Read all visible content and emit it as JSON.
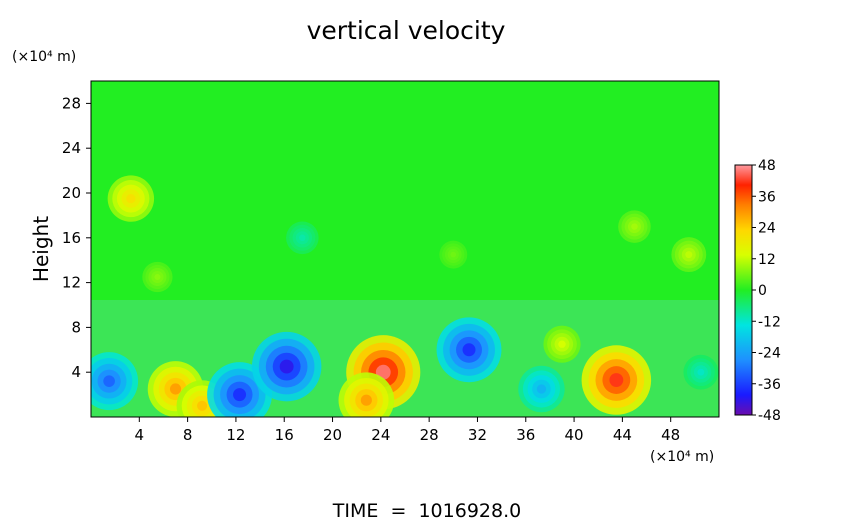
{
  "chart_data": {
    "type": "heatmap",
    "title": "vertical velocity",
    "ylabel": "Height",
    "x_unit_label": "(×10⁴ m)",
    "y_unit_label": "(×10⁴ m)",
    "xlim": [
      0,
      52
    ],
    "ylim": [
      0,
      30
    ],
    "x_ticks": [
      4,
      8,
      12,
      16,
      20,
      24,
      28,
      32,
      36,
      40,
      44,
      48
    ],
    "y_ticks": [
      4,
      8,
      12,
      16,
      20,
      24,
      28
    ],
    "colorbar": {
      "range": [
        -48,
        48
      ],
      "ticks": [
        48,
        36,
        24,
        12,
        0,
        -12,
        -24,
        -36,
        -48
      ]
    },
    "footer": "TIME  =  1016928.0",
    "features": [
      {
        "x": 1.5,
        "y": 3.2,
        "value": -32
      },
      {
        "x": 3.3,
        "y": 19.5,
        "value": 22
      },
      {
        "x": 7.0,
        "y": 2.5,
        "value": 30
      },
      {
        "x": 9.2,
        "y": 1.0,
        "value": 26
      },
      {
        "x": 12.3,
        "y": 2.0,
        "value": -38
      },
      {
        "x": 16.2,
        "y": 4.5,
        "value": -42
      },
      {
        "x": 24.2,
        "y": 4.0,
        "value": 46
      },
      {
        "x": 22.8,
        "y": 1.5,
        "value": 30
      },
      {
        "x": 31.3,
        "y": 6.0,
        "value": -38
      },
      {
        "x": 37.3,
        "y": 2.5,
        "value": -22
      },
      {
        "x": 43.5,
        "y": 3.3,
        "value": 42
      },
      {
        "x": 39.0,
        "y": 6.5,
        "value": 14
      },
      {
        "x": 5.5,
        "y": 12.5,
        "value": 8
      },
      {
        "x": 17.5,
        "y": 16.0,
        "value": -10
      },
      {
        "x": 30.0,
        "y": 14.5,
        "value": 6
      },
      {
        "x": 45.0,
        "y": 17.0,
        "value": 10
      },
      {
        "x": 49.5,
        "y": 14.5,
        "value": 12
      },
      {
        "x": 50.5,
        "y": 4.0,
        "value": -12
      }
    ]
  }
}
